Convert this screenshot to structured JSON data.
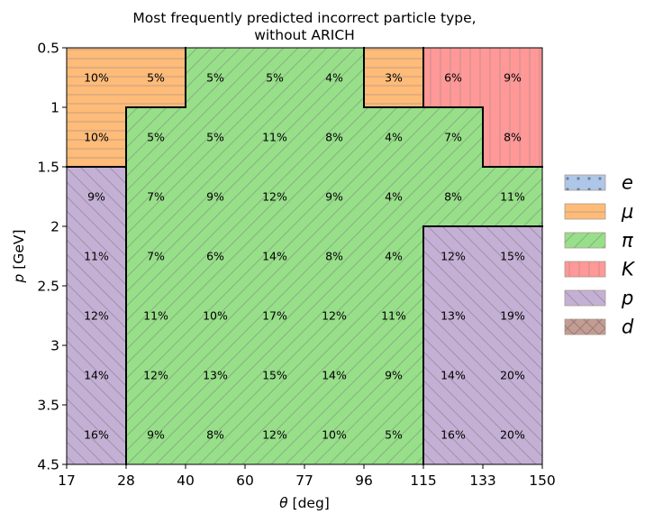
{
  "chart_data": {
    "type": "heatmap",
    "title": [
      "Most frequently predicted incorrect particle type,",
      "without ARICH"
    ],
    "xlabel": "θ [deg]",
    "xlabel_parts": [
      "θ",
      " [deg]"
    ],
    "ylabel": "p [GeV]",
    "ylabel_parts": [
      "p",
      " [GeV]"
    ],
    "x_edges": [
      "17",
      "28",
      "40",
      "60",
      "77",
      "96",
      "115",
      "133",
      "150"
    ],
    "y_edges": [
      "0.5",
      "1",
      "1.5",
      "2",
      "2.5",
      "3",
      "3.5",
      "4.5"
    ],
    "legend": [
      {
        "key": "e",
        "label": "e",
        "color": "#aec7e8",
        "hatch": "dots"
      },
      {
        "key": "mu",
        "label": "μ",
        "color": "#ffbb78",
        "hatch": "horizontal"
      },
      {
        "key": "pi",
        "label": "π",
        "color": "#98df8a",
        "hatch": "diag-up"
      },
      {
        "key": "K",
        "label": "K",
        "color": "#ff9896",
        "hatch": "vertical"
      },
      {
        "key": "p",
        "label": "p",
        "color": "#c5b0d5",
        "hatch": "diag-down"
      },
      {
        "key": "d",
        "label": "d",
        "color": "#c49c94",
        "hatch": "cross"
      }
    ],
    "cells": [
      [
        {
          "type": "mu",
          "value": "10%"
        },
        {
          "type": "mu",
          "value": "5%"
        },
        {
          "type": "pi",
          "value": "5%"
        },
        {
          "type": "pi",
          "value": "5%"
        },
        {
          "type": "pi",
          "value": "4%"
        },
        {
          "type": "mu",
          "value": "3%"
        },
        {
          "type": "K",
          "value": "6%"
        },
        {
          "type": "K",
          "value": "9%"
        }
      ],
      [
        {
          "type": "mu",
          "value": "10%"
        },
        {
          "type": "pi",
          "value": "5%"
        },
        {
          "type": "pi",
          "value": "5%"
        },
        {
          "type": "pi",
          "value": "11%"
        },
        {
          "type": "pi",
          "value": "8%"
        },
        {
          "type": "pi",
          "value": "4%"
        },
        {
          "type": "pi",
          "value": "7%"
        },
        {
          "type": "K",
          "value": "8%"
        }
      ],
      [
        {
          "type": "p",
          "value": "9%"
        },
        {
          "type": "pi",
          "value": "7%"
        },
        {
          "type": "pi",
          "value": "9%"
        },
        {
          "type": "pi",
          "value": "12%"
        },
        {
          "type": "pi",
          "value": "9%"
        },
        {
          "type": "pi",
          "value": "4%"
        },
        {
          "type": "pi",
          "value": "8%"
        },
        {
          "type": "pi",
          "value": "11%"
        }
      ],
      [
        {
          "type": "p",
          "value": "11%"
        },
        {
          "type": "pi",
          "value": "7%"
        },
        {
          "type": "pi",
          "value": "6%"
        },
        {
          "type": "pi",
          "value": "14%"
        },
        {
          "type": "pi",
          "value": "8%"
        },
        {
          "type": "pi",
          "value": "4%"
        },
        {
          "type": "p",
          "value": "12%"
        },
        {
          "type": "p",
          "value": "15%"
        }
      ],
      [
        {
          "type": "p",
          "value": "12%"
        },
        {
          "type": "pi",
          "value": "11%"
        },
        {
          "type": "pi",
          "value": "10%"
        },
        {
          "type": "pi",
          "value": "17%"
        },
        {
          "type": "pi",
          "value": "12%"
        },
        {
          "type": "pi",
          "value": "11%"
        },
        {
          "type": "p",
          "value": "13%"
        },
        {
          "type": "p",
          "value": "19%"
        }
      ],
      [
        {
          "type": "p",
          "value": "14%"
        },
        {
          "type": "pi",
          "value": "12%"
        },
        {
          "type": "pi",
          "value": "13%"
        },
        {
          "type": "pi",
          "value": "15%"
        },
        {
          "type": "pi",
          "value": "14%"
        },
        {
          "type": "pi",
          "value": "9%"
        },
        {
          "type": "p",
          "value": "14%"
        },
        {
          "type": "p",
          "value": "20%"
        }
      ],
      [
        {
          "type": "p",
          "value": "16%"
        },
        {
          "type": "pi",
          "value": "9%"
        },
        {
          "type": "pi",
          "value": "8%"
        },
        {
          "type": "pi",
          "value": "12%"
        },
        {
          "type": "pi",
          "value": "10%"
        },
        {
          "type": "pi",
          "value": "5%"
        },
        {
          "type": "p",
          "value": "16%"
        },
        {
          "type": "p",
          "value": "20%"
        }
      ]
    ]
  }
}
